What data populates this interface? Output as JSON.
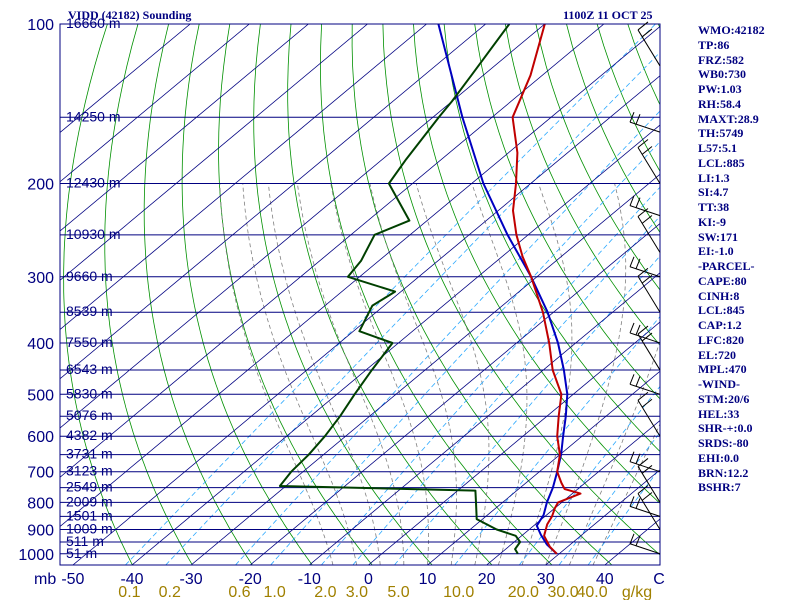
{
  "chart_data": {
    "type": "skew-t-sounding",
    "title": "VIDD (42182) Sounding",
    "timestamp": "1100Z 11 OCT 25",
    "pressure_axis_label": "mb",
    "pressure_ticks": [
      100,
      200,
      300,
      400,
      500,
      600,
      700,
      800,
      900,
      1000
    ],
    "pressure_range_mb": [
      1050,
      100
    ],
    "temperature_axis_unit": "C",
    "temperature_ticks": [
      "-50",
      "-40",
      "-30",
      "-20",
      "-10",
      "0",
      "10",
      "20",
      "30",
      "40"
    ],
    "mixing_ratio_axis_unit": "g/kg",
    "mixing_ratio_ticks": [
      "0.1",
      "0.2",
      "0.6",
      "1.0",
      "2.0",
      "3.0",
      "5.0",
      "10.0",
      "20.0",
      "30.0",
      "40.0"
    ],
    "height_labels": [
      {
        "p": 100,
        "label": "16660 m"
      },
      {
        "p": 150,
        "label": "14250 m"
      },
      {
        "p": 200,
        "label": "12430 m"
      },
      {
        "p": 250,
        "label": "10930 m"
      },
      {
        "p": 300,
        "label": "9660 m"
      },
      {
        "p": 350,
        "label": "8539 m"
      },
      {
        "p": 400,
        "label": "7550 m"
      },
      {
        "p": 450,
        "label": "6543 m"
      },
      {
        "p": 500,
        "label": "5830 m"
      },
      {
        "p": 550,
        "label": "5076 m"
      },
      {
        "p": 600,
        "label": "4382 m"
      },
      {
        "p": 650,
        "label": "3731 m"
      },
      {
        "p": 700,
        "label": "3123 m"
      },
      {
        "p": 750,
        "label": "2549 m"
      },
      {
        "p": 800,
        "label": "2009 m"
      },
      {
        "p": 850,
        "label": "1501 m"
      },
      {
        "p": 900,
        "label": "1009 m"
      },
      {
        "p": 950,
        "label": "511 m"
      },
      {
        "p": 1000,
        "label": "51 m"
      }
    ],
    "temperature_profile": [
      {
        "p": 1000,
        "t": 29.6
      },
      {
        "p": 970,
        "t": 27.0
      },
      {
        "p": 925,
        "t": 23.8
      },
      {
        "p": 880,
        "t": 22.0
      },
      {
        "p": 850,
        "t": 21.2
      },
      {
        "p": 820,
        "t": 20.0
      },
      {
        "p": 800,
        "t": 19.4
      },
      {
        "p": 770,
        "t": 21.4
      },
      {
        "p": 755,
        "t": 17.8
      },
      {
        "p": 735,
        "t": 16.0
      },
      {
        "p": 700,
        "t": 13.0
      },
      {
        "p": 650,
        "t": 10.0
      },
      {
        "p": 600,
        "t": 5.8
      },
      {
        "p": 550,
        "t": 2.0
      },
      {
        "p": 500,
        "t": -2.0
      },
      {
        "p": 450,
        "t": -8.4
      },
      {
        "p": 400,
        "t": -14.5
      },
      {
        "p": 350,
        "t": -21.8
      },
      {
        "p": 300,
        "t": -31.0
      },
      {
        "p": 275,
        "t": -36.5
      },
      {
        "p": 250,
        "t": -42.0
      },
      {
        "p": 225,
        "t": -47.5
      },
      {
        "p": 200,
        "t": -52.5
      },
      {
        "p": 175,
        "t": -58.5
      },
      {
        "p": 150,
        "t": -66.5
      },
      {
        "p": 125,
        "t": -72.0
      },
      {
        "p": 100,
        "t": -80.0
      }
    ],
    "dewpoint_profile": [
      {
        "p": 1000,
        "t": 23.0
      },
      {
        "p": 980,
        "t": 21.6
      },
      {
        "p": 950,
        "t": 21.0
      },
      {
        "p": 925,
        "t": 19.0
      },
      {
        "p": 900,
        "t": 14.5
      },
      {
        "p": 860,
        "t": 9.0
      },
      {
        "p": 800,
        "t": 5.5
      },
      {
        "p": 760,
        "t": 3.0
      },
      {
        "p": 745,
        "t": -31.0
      },
      {
        "p": 700,
        "t": -32.0
      },
      {
        "p": 650,
        "t": -32.5
      },
      {
        "p": 600,
        "t": -33.5
      },
      {
        "p": 550,
        "t": -35.0
      },
      {
        "p": 500,
        "t": -37.0
      },
      {
        "p": 450,
        "t": -39.0
      },
      {
        "p": 400,
        "t": -41.0
      },
      {
        "p": 380,
        "t": -49.0
      },
      {
        "p": 340,
        "t": -52.0
      },
      {
        "p": 320,
        "t": -51.0
      },
      {
        "p": 300,
        "t": -62.0
      },
      {
        "p": 280,
        "t": -63.0
      },
      {
        "p": 250,
        "t": -66.0
      },
      {
        "p": 235,
        "t": -63.0
      },
      {
        "p": 200,
        "t": -74.0
      },
      {
        "p": 180,
        "t": -76.0
      },
      {
        "p": 150,
        "t": -79.0
      },
      {
        "p": 140,
        "t": -80.0
      },
      {
        "p": 125,
        "t": -82.0
      },
      {
        "p": 100,
        "t": -86.0
      }
    ],
    "parcel_profile": [
      {
        "p": 1000,
        "t": 29.6
      },
      {
        "p": 960,
        "t": 26.0
      },
      {
        "p": 920,
        "t": 23.0
      },
      {
        "p": 885,
        "t": 20.5
      },
      {
        "p": 845,
        "t": 19.5
      },
      {
        "p": 800,
        "t": 17.5
      },
      {
        "p": 750,
        "t": 15.5
      },
      {
        "p": 700,
        "t": 13.0
      },
      {
        "p": 650,
        "t": 10.2
      },
      {
        "p": 600,
        "t": 6.8
      },
      {
        "p": 550,
        "t": 3.2
      },
      {
        "p": 500,
        "t": -1.0
      },
      {
        "p": 450,
        "t": -6.5
      },
      {
        "p": 400,
        "t": -13.0
      },
      {
        "p": 350,
        "t": -21.0
      },
      {
        "p": 300,
        "t": -31.0
      },
      {
        "p": 250,
        "t": -43.5
      },
      {
        "p": 200,
        "t": -58.0
      },
      {
        "p": 150,
        "t": -75.0
      },
      {
        "p": 100,
        "t": -98.0
      }
    ],
    "wind_barb_pressures": [
      120,
      160,
      200,
      230,
      270,
      300,
      350,
      400,
      450,
      500,
      600,
      700,
      800,
      850,
      900,
      1000
    ]
  },
  "indices": [
    "WMO:42182",
    "TP:86",
    "FRZ:582",
    "WB0:730",
    "PW:1.03",
    "RH:58.4",
    "MAXT:28.9",
    "TH:5749",
    "L57:5.1",
    "LCL:885",
    "LI:1.3",
    "SI:4.7",
    "TT:38",
    "KI:-9",
    "SW:171",
    "EI:-1.0",
    "-PARCEL-",
    "CAPE:80",
    "CINH:8",
    "LCL:845",
    "CAP:1.2",
    "LFC:820",
    "EL:720",
    "MPL:470",
    "-WIND-",
    "STM:20/6",
    "HEL:33",
    "SHR-+:0.0",
    "SRDS:-80",
    "EHI:0.0",
    "BRN:12.2",
    "BSHR:7"
  ],
  "colors": {
    "frame": "#000080",
    "isobar": "#000080",
    "isotherm": "#000080",
    "dry_adiabat": "#009000",
    "moist_adiabat": "#808080",
    "mixing_ratio": "#2aa8ff",
    "temperature": "#c00000",
    "dewpoint": "#004000",
    "parcel": "#0000c0",
    "axis_text": "#000080",
    "mixing_text": "#a08000",
    "wind_barb": "#000000"
  }
}
